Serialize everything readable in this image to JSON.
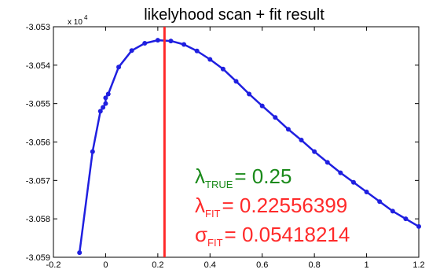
{
  "chart_data": {
    "type": "line",
    "title": "likelyhood scan + fit result",
    "xlabel": "",
    "ylabel": "",
    "xlim": [
      -0.2,
      1.2
    ],
    "ylim": [
      -30590,
      -30530
    ],
    "y_exponent_label": "x 10",
    "y_exponent_power": "4",
    "x_ticks": [
      -0.2,
      0,
      0.2,
      0.4,
      0.6,
      0.8,
      1,
      1.2
    ],
    "x_tick_labels": [
      "-0.2",
      "0",
      "0.2",
      "0.4",
      "0.6",
      "0.8",
      "1",
      "1.2"
    ],
    "y_ticks": [
      -30590,
      -30580,
      -30570,
      -30560,
      -30550,
      -30540,
      -30530
    ],
    "y_tick_labels": [
      "-3.059",
      "-3.058",
      "-3.057",
      "-3.056",
      "-3.055",
      "-3.054",
      "-3.053"
    ],
    "grid": false,
    "series": [
      {
        "color": "#1f1fe0",
        "x": [
          -0.1,
          -0.05,
          -0.02,
          -0.01,
          0.0,
          0.0,
          0.01,
          0.05,
          0.1,
          0.15,
          0.2,
          0.25,
          0.3,
          0.35,
          0.4,
          0.45,
          0.5,
          0.55,
          0.6,
          0.65,
          0.7,
          0.75,
          0.8,
          0.85,
          0.9,
          0.95,
          1.0,
          1.05,
          1.1,
          1.15,
          1.2
        ],
        "y": [
          -30588.8,
          -30562.5,
          -30552.0,
          -30551.0,
          -30550.0,
          -30548.5,
          -30547.5,
          -30540.5,
          -30536.2,
          -30534.3,
          -30533.5,
          -30533.7,
          -30534.6,
          -30536.3,
          -30538.5,
          -30541.0,
          -30544.2,
          -30547.5,
          -30550.6,
          -30553.6,
          -30556.7,
          -30559.5,
          -30562.5,
          -30565.3,
          -30568.0,
          -30570.5,
          -30573.0,
          -30575.5,
          -30578.0,
          -30580.0,
          -30582.0
        ]
      }
    ],
    "vline": {
      "x": 0.22556399,
      "color": "#ff2a2a"
    },
    "annotations": [
      {
        "symbol": "λ",
        "subscript": "TRUE",
        "rest": "= 0.25",
        "color": "#1a8a1a"
      },
      {
        "symbol": "λ",
        "subscript": "FIT",
        "rest": "= 0.22556399",
        "color": "#ff2a2a"
      },
      {
        "symbol": "σ",
        "subscript": "FIT",
        "rest": "= 0.05418214",
        "color": "#ff2a2a"
      }
    ]
  }
}
